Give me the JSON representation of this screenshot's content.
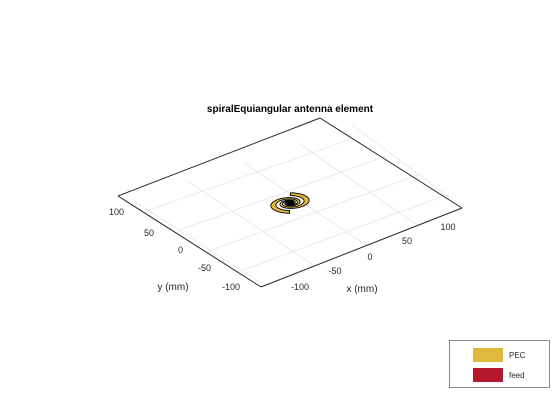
{
  "figure": {
    "title": "spiralEquiangular antenna element",
    "x_axis": {
      "label": "x (mm)",
      "ticks": [
        "-100",
        "-50",
        "0",
        "50",
        "100"
      ]
    },
    "y_axis": {
      "label": "y (mm)",
      "ticks": [
        "100",
        "50",
        "0",
        "-50",
        "-100"
      ]
    }
  },
  "legend": {
    "items": [
      {
        "label": "PEC",
        "color": "#e0b83c"
      },
      {
        "label": "feed",
        "color": "#b5182e"
      }
    ]
  },
  "colors": {
    "metal": "#e0b83c",
    "edge": "#000000",
    "grid": "#e6e6e6",
    "axis": "#262626"
  }
}
